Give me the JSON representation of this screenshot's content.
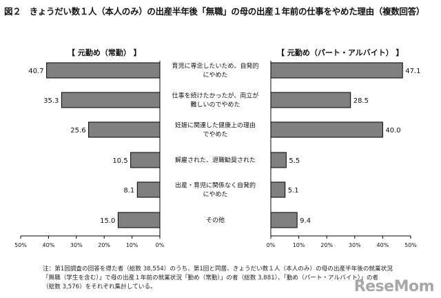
{
  "title": "図２　きょうだい数１人（本人のみ）の出産半年後「無職」の母の出産１年前の仕事をやめた理由（複数回答）",
  "chart_data": [
    {
      "type": "bar",
      "orientation": "horizontal",
      "direction": "right-to-left",
      "title": "【 元勤め（常勤） 】",
      "categories": [
        "育児に専念したいため、自発的にやめた",
        "仕事を続けたかったが、両立が難しいのでやめた",
        "妊娠に関連した健康上の理由でやめた",
        "解雇された、退職勧奨された",
        "出産・育児に関係なく自発的にやめた",
        "その他"
      ],
      "values": [
        40.7,
        35.3,
        25.6,
        10.5,
        8.1,
        15.0
      ],
      "value_labels": [
        "40.7",
        "35.3",
        "25.6",
        "10.5",
        "8.1",
        "15.0"
      ],
      "xlim": [
        0,
        50
      ],
      "x_ticks": [
        "50%",
        "40%",
        "30%",
        "20%",
        "10%",
        "0%"
      ]
    },
    {
      "type": "bar",
      "orientation": "horizontal",
      "direction": "left-to-right",
      "title": "【 元勤め（パート・アルバイト） 】",
      "categories": [
        "育児に専念したいため、自発的にやめた",
        "仕事を続けたかったが、両立が難しいのでやめた",
        "妊娠に関連した健康上の理由でやめた",
        "解雇された、退職勧奨された",
        "出産・育児に関係なく自発的にやめた",
        "その他"
      ],
      "values": [
        47.1,
        28.5,
        40.0,
        5.5,
        5.1,
        9.4
      ],
      "value_labels": [
        "47.1",
        "28.5",
        "40.0",
        "5.5",
        "5.1",
        "9.4"
      ],
      "xlim": [
        0,
        50
      ],
      "x_ticks": [
        "0%",
        "10%",
        "20%",
        "30%",
        "40%",
        "50%"
      ]
    }
  ],
  "category_labels": [
    [
      "育児に専念したいため、自発的",
      "にやめた"
    ],
    [
      "仕事を続けたかったが、両立が",
      "難しいのでやめた"
    ],
    [
      "妊娠に関連した健康上の理由",
      "でやめた"
    ],
    [
      "解雇された、退職勧奨された"
    ],
    [
      "出産・育児に関係なく自発的",
      "にやめた"
    ],
    [
      "その他"
    ]
  ],
  "colors": {
    "bar_fill": "#808080",
    "bar_stroke": "#000000",
    "axis": "#000000"
  },
  "note": [
    "注：第1回調査の回答を得た者（総数 38,554）のうち、第1回と同居、きょうだい数１人（本人のみ）の母の出産半年後の就業状況",
    "「無職（学生を含む）」で母の出産１年前の就業状況「勤め（常勤）」の者（総数 3,881）、「勤め（パート・アルバイト）」の者",
    "（総数 3,576）をそれぞれ集計している。"
  ],
  "watermark": "ReseMom"
}
